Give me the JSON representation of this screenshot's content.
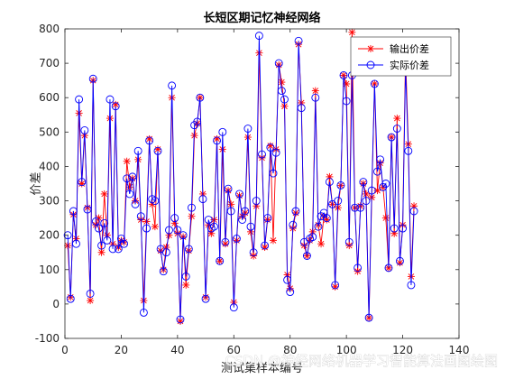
{
  "chart_data": {
    "type": "line",
    "title": "长短区期记忆神经网络",
    "xlabel": "测试集样本编号",
    "ylabel": "价差",
    "xlim": [
      0,
      140
    ],
    "ylim": [
      -100,
      800
    ],
    "xticks": [
      0,
      20,
      40,
      60,
      80,
      100,
      120,
      140
    ],
    "yticks": [
      -100,
      0,
      100,
      200,
      300,
      400,
      500,
      600,
      700,
      800
    ],
    "grid": false,
    "legend_position": "top-right",
    "series": [
      {
        "name": "输出价差",
        "color": "#ff0000",
        "marker": "asterisk",
        "values": [
          170,
          20,
          260,
          190,
          555,
          350,
          490,
          280,
          10,
          650,
          230,
          250,
          150,
          320,
          200,
          540,
          175,
          580,
          165,
          185,
          180,
          415,
          340,
          365,
          300,
          420,
          245,
          10,
          240,
          480,
          290,
          225,
          450,
          155,
          100,
          165,
          200,
          600,
          235,
          205,
          -50,
          195,
          55,
          155,
          255,
          490,
          525,
          600,
          320,
          20,
          230,
          205,
          245,
          480,
          125,
          450,
          175,
          330,
          290,
          5,
          185,
          315,
          255,
          265,
          485,
          210,
          140,
          285,
          730,
          425,
          165,
          245,
          460,
          185,
          450,
          695,
          645,
          575,
          85,
          45,
          220,
          265,
          755,
          585,
          170,
          140,
          185,
          210,
          620,
          230,
          175,
          255,
          245,
          370,
          290,
          50,
          280,
          345,
          665,
          640,
          170,
          790,
          280,
          95,
          285,
          350,
          320,
          -40,
          310,
          640,
          330,
          410,
          340,
          250,
          105,
          485,
          205,
          540,
          120,
          230,
          725,
          465,
          80,
          285
        ]
      },
      {
        "name": "实际价差",
        "color": "#0000ff",
        "marker": "circle",
        "values": [
          200,
          15,
          270,
          175,
          595,
          355,
          505,
          275,
          30,
          655,
          240,
          220,
          170,
          235,
          185,
          595,
          160,
          575,
          160,
          190,
          175,
          365,
          320,
          370,
          290,
          445,
          255,
          -25,
          220,
          475,
          305,
          300,
          445,
          160,
          95,
          150,
          215,
          635,
          250,
          215,
          -45,
          200,
          80,
          160,
          280,
          520,
          530,
          600,
          305,
          15,
          245,
          220,
          225,
          475,
          125,
          500,
          180,
          335,
          270,
          -10,
          190,
          320,
          245,
          270,
          510,
          225,
          150,
          300,
          780,
          435,
          170,
          250,
          455,
          380,
          440,
          700,
          620,
          595,
          70,
          35,
          230,
          270,
          765,
          570,
          180,
          140,
          190,
          195,
          600,
          225,
          255,
          265,
          250,
          355,
          290,
          55,
          300,
          345,
          665,
          590,
          180,
          665,
          280,
          105,
          280,
          355,
          300,
          -40,
          330,
          640,
          385,
          420,
          340,
          350,
          105,
          485,
          220,
          510,
          125,
          220,
          685,
          445,
          55,
          270
        ]
      }
    ]
  },
  "watermark": "CSDN @神经网络机器学习智能算法画图绘图"
}
